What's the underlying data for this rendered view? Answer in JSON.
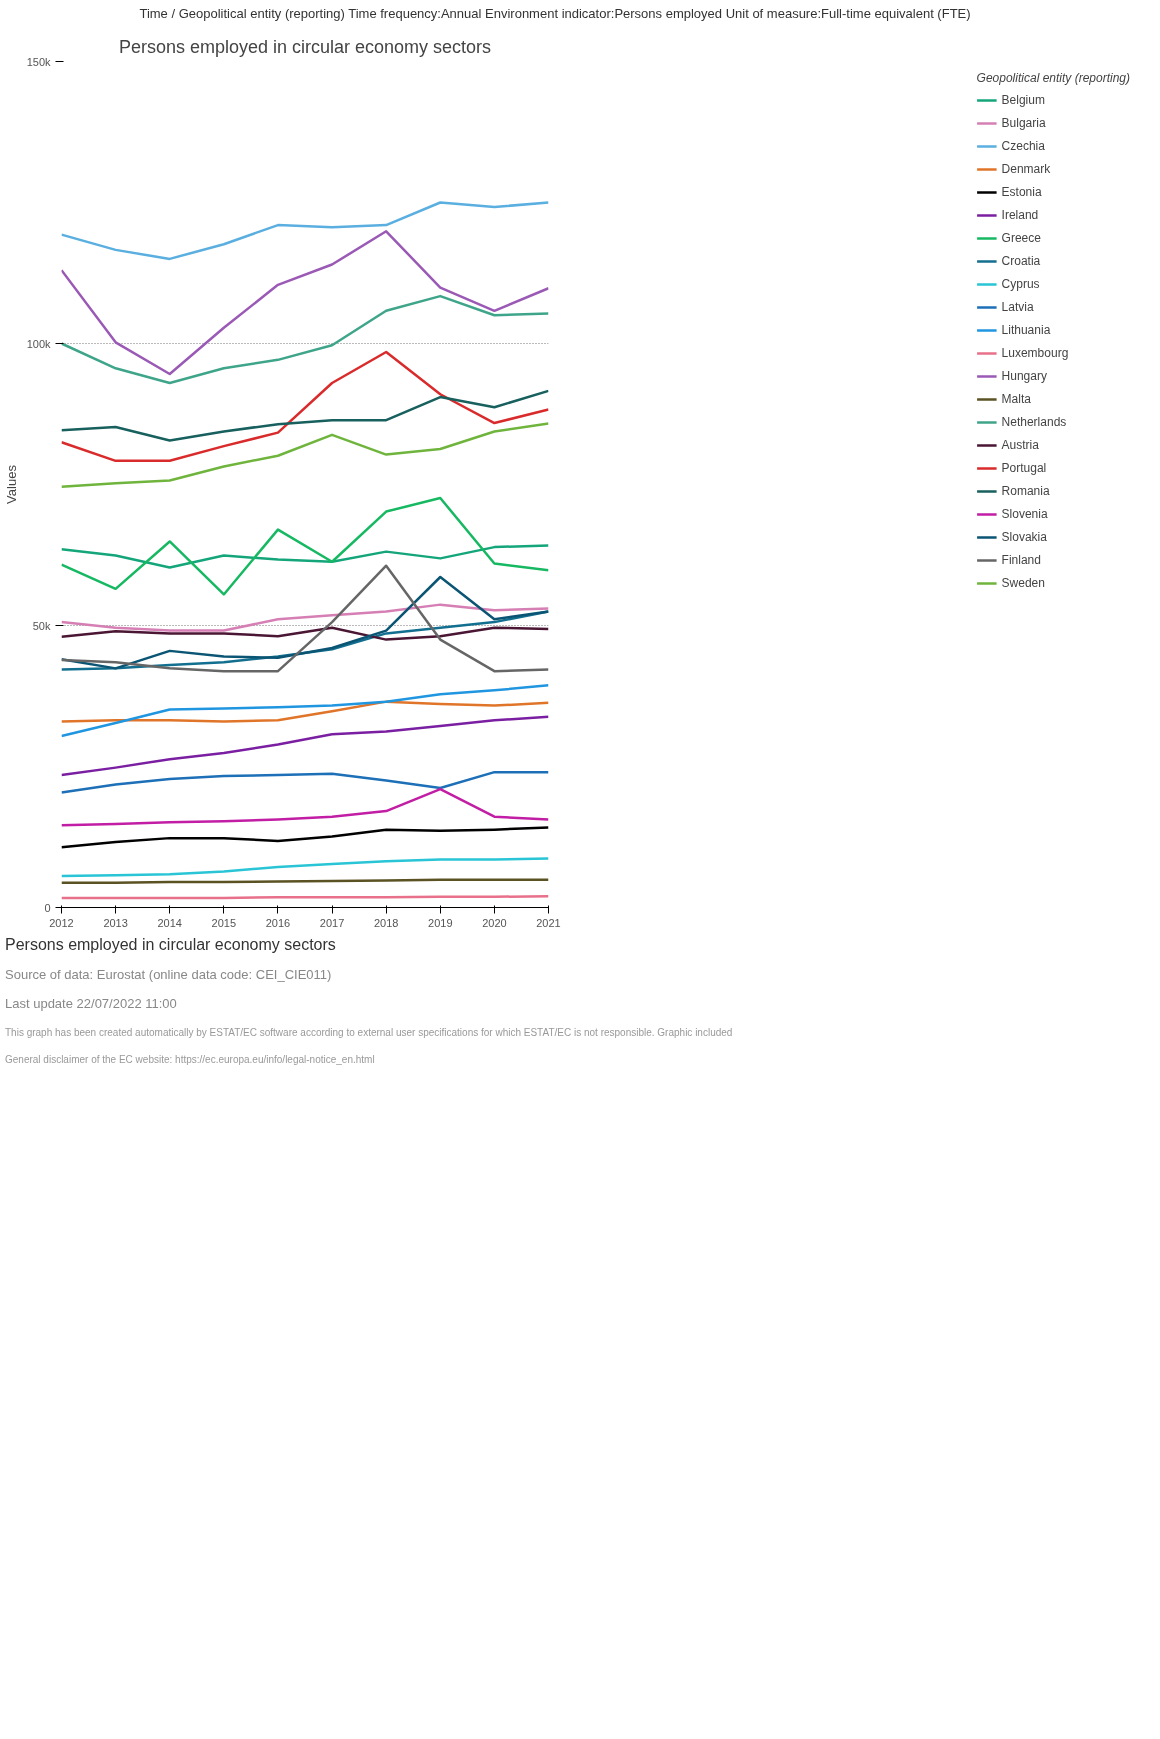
{
  "chart_data": {
    "type": "line",
    "title": "Persons employed in circular economy sectors",
    "subtitle": "Time / Geopolitical entity (reporting)  Time frequency:Annual  Environment indicator:Persons employed  Unit of measure:Full-time equivalent (FTE)",
    "ylabel": "Values",
    "legend_title": "Geopolitical entity (reporting)",
    "x": [
      2012,
      2013,
      2014,
      2015,
      2016,
      2017,
      2018,
      2019,
      2020,
      2021
    ],
    "xlim": [
      2012,
      2021
    ],
    "xticks": [
      2012,
      2013,
      2014,
      2015,
      2016,
      2017,
      2018,
      2019,
      2020,
      2021
    ],
    "ylim": [
      0,
      150000
    ],
    "yticks": [
      0,
      {
        "value": 50000,
        "label": "50k"
      },
      {
        "value": 100000,
        "label": "100k"
      },
      {
        "value": 150000,
        "label": "150k"
      }
    ],
    "grid": "y",
    "legend": "right",
    "marker": "none",
    "line_style": "solid",
    "series": [
      {
        "name": "Belgium",
        "color": "#14a67a",
        "values": [
          63500,
          62400,
          60300,
          62400,
          61700,
          61300,
          63100,
          61900,
          63900,
          64200
        ]
      },
      {
        "name": "Bulgaria",
        "color": "#d67fb5",
        "values": [
          50600,
          49600,
          49100,
          49100,
          51100,
          51800,
          52500,
          53700,
          52700,
          53000
        ]
      },
      {
        "name": "Czechia",
        "color": "#5aafe0",
        "values": [
          119300,
          116600,
          115000,
          117600,
          121000,
          120600,
          121000,
          125000,
          124200,
          125000
        ]
      },
      {
        "name": "Denmark",
        "color": "#e0752a",
        "values": [
          33000,
          33200,
          33200,
          33000,
          33200,
          34800,
          36500,
          36100,
          35800,
          36300
        ]
      },
      {
        "name": "Estonia",
        "color": "#000000",
        "values": [
          10700,
          11600,
          12300,
          12300,
          11800,
          12600,
          13800,
          13600,
          13800,
          14200
        ]
      },
      {
        "name": "Ireland",
        "color": "#7b1fa2",
        "values": [
          23500,
          24800,
          26300,
          27400,
          28900,
          30700,
          31200,
          32200,
          33200,
          33800
        ]
      },
      {
        "name": "Greece",
        "color": "#16b862",
        "values": [
          60800,
          56500,
          64900,
          55500,
          67000,
          61300,
          70200,
          72600,
          61000,
          59800
        ]
      },
      {
        "name": "Croatia",
        "color": "#136f8f",
        "values": [
          42200,
          42400,
          43000,
          43500,
          44500,
          45800,
          48600,
          49600,
          50600,
          52500
        ]
      },
      {
        "name": "Cyprus",
        "color": "#29c5d6",
        "values": [
          5600,
          5700,
          5900,
          6400,
          7200,
          7700,
          8200,
          8500,
          8500,
          8700
        ]
      },
      {
        "name": "Latvia",
        "color": "#1d70b7",
        "values": [
          20400,
          21800,
          22800,
          23300,
          23500,
          23700,
          22500,
          21200,
          24000,
          24000
        ]
      },
      {
        "name": "Lithuania",
        "color": "#2196e0",
        "values": [
          30400,
          32700,
          35100,
          35300,
          35500,
          35800,
          36500,
          37800,
          38500,
          39400
        ]
      },
      {
        "name": "Luxembourg",
        "color": "#e8708a",
        "values": [
          1700,
          1700,
          1700,
          1700,
          1800,
          1800,
          1800,
          1900,
          1900,
          2000
        ]
      },
      {
        "name": "Hungary",
        "color": "#9b59b6",
        "values": [
          113000,
          100200,
          94600,
          102800,
          110400,
          114000,
          119900,
          109900,
          105800,
          109800
        ]
      },
      {
        "name": "Malta",
        "color": "#5b5223",
        "values": [
          4400,
          4400,
          4500,
          4500,
          4600,
          4700,
          4800,
          4900,
          4900,
          4900
        ]
      },
      {
        "name": "Netherlands",
        "color": "#3fa58a",
        "values": [
          100000,
          95600,
          93000,
          95600,
          97100,
          99700,
          105800,
          108400,
          105000,
          105300
        ]
      },
      {
        "name": "Austria",
        "color": "#4a1634",
        "values": [
          48000,
          49000,
          48600,
          48600,
          48100,
          49600,
          47500,
          48100,
          49600,
          49400
        ]
      },
      {
        "name": "Portugal",
        "color": "#d92b2b",
        "values": [
          82500,
          79200,
          79200,
          81800,
          84200,
          93000,
          98500,
          91000,
          85900,
          88300
        ]
      },
      {
        "name": "Romania",
        "color": "#17605e",
        "values": [
          84600,
          85200,
          82800,
          84400,
          85700,
          86400,
          86400,
          90500,
          88700,
          91600
        ]
      },
      {
        "name": "Slovenia",
        "color": "#c21ea5",
        "values": [
          14600,
          14800,
          15100,
          15300,
          15600,
          16100,
          17100,
          21000,
          16100,
          15600
        ]
      },
      {
        "name": "Slovakia",
        "color": "#0b5574",
        "values": [
          44000,
          42400,
          45500,
          44500,
          44300,
          46000,
          49100,
          58600,
          51100,
          52500
        ]
      },
      {
        "name": "Finland",
        "color": "#666666",
        "values": [
          43900,
          43500,
          42400,
          41900,
          41900,
          50600,
          60600,
          47500,
          41900,
          42200
        ]
      },
      {
        "name": "Sweden",
        "color": "#6fb53d",
        "values": [
          74600,
          75200,
          75700,
          78200,
          80100,
          83800,
          80300,
          81300,
          84400,
          85800
        ]
      }
    ],
    "annotations": [
      "Persons employed in circular economy sectors",
      "Source of data: Eurostat (online data code: CEI_CIE011)",
      "Last update 22/07/2022 11:00",
      "This graph has been created automatically by ESTAT/EC software according to external user specifications for which ESTAT/EC is not responsible. Graphic included",
      "General disclaimer of the EC website: https://ec.europa.eu/info/legal-notice_en.html"
    ]
  }
}
